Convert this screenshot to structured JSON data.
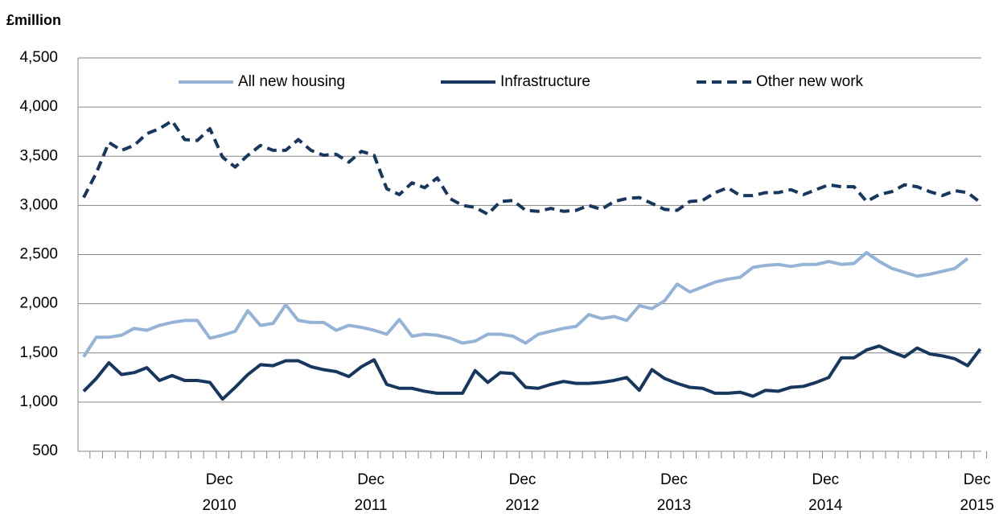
{
  "chart_data": {
    "type": "line",
    "y_label": "£million",
    "categories": [
      null,
      null,
      null,
      null,
      null,
      null,
      null,
      null,
      null,
      null,
      null,
      "Dec 2010",
      null,
      null,
      null,
      null,
      null,
      null,
      null,
      null,
      null,
      null,
      null,
      "Dec 2011",
      null,
      null,
      null,
      null,
      null,
      null,
      null,
      null,
      null,
      null,
      null,
      "Dec 2012",
      null,
      null,
      null,
      null,
      null,
      null,
      null,
      null,
      null,
      null,
      null,
      "Dec 2013",
      null,
      null,
      null,
      null,
      null,
      null,
      null,
      null,
      null,
      null,
      null,
      "Dec 2014",
      null,
      null,
      null,
      null,
      null,
      null,
      null,
      null,
      null,
      null,
      null,
      "Dec 2015"
    ],
    "series": [
      {
        "name": "All new housing",
        "color": "#95b3d7",
        "dashed": false,
        "values": [
          1460,
          1660,
          1660,
          1680,
          1750,
          1730,
          1780,
          1810,
          1830,
          1830,
          1650,
          1680,
          1720,
          1930,
          1780,
          1800,
          1990,
          1830,
          1810,
          1810,
          1730,
          1780,
          1760,
          1730,
          1690,
          1840,
          1670,
          1690,
          1680,
          1650,
          1600,
          1620,
          1690,
          1690,
          1670,
          1600,
          1690,
          1720,
          1750,
          1770,
          1890,
          1850,
          1870,
          1830,
          1980,
          1950,
          2030,
          2200,
          2120,
          2170,
          2220,
          2250,
          2270,
          2370,
          2390,
          2400,
          2380,
          2400,
          2400,
          2430,
          2400,
          2410,
          2520,
          2430,
          2360,
          2320,
          2280,
          2300,
          2330,
          2360,
          2460,
          null
        ]
      },
      {
        "name": "Infrastructure",
        "color": "#17375e",
        "dashed": false,
        "values": [
          1110,
          1240,
          1400,
          1280,
          1300,
          1350,
          1220,
          1270,
          1220,
          1220,
          1200,
          1030,
          1150,
          1280,
          1380,
          1370,
          1420,
          1420,
          1360,
          1330,
          1310,
          1260,
          1360,
          1430,
          1180,
          1140,
          1140,
          1110,
          1090,
          1090,
          1090,
          1320,
          1200,
          1300,
          1290,
          1150,
          1140,
          1180,
          1210,
          1190,
          1190,
          1200,
          1220,
          1250,
          1120,
          1330,
          1240,
          1190,
          1150,
          1140,
          1090,
          1090,
          1100,
          1060,
          1120,
          1110,
          1150,
          1160,
          1200,
          1250,
          1450,
          1450,
          1530,
          1570,
          1510,
          1460,
          1550,
          1490,
          1470,
          1440,
          1370,
          1540
        ]
      },
      {
        "name": "Other new work",
        "color": "#17375e",
        "dashed": true,
        "values": [
          3080,
          3330,
          3640,
          3560,
          3610,
          3730,
          3780,
          3860,
          3670,
          3660,
          3780,
          3490,
          3390,
          3510,
          3610,
          3560,
          3560,
          3670,
          3560,
          3510,
          3520,
          3440,
          3550,
          3510,
          3170,
          3110,
          3230,
          3180,
          3280,
          3070,
          3000,
          2980,
          2910,
          3040,
          3050,
          2950,
          2940,
          2970,
          2940,
          2950,
          3000,
          2960,
          3040,
          3070,
          3080,
          3020,
          2960,
          2950,
          3040,
          3050,
          3130,
          3180,
          3100,
          3100,
          3130,
          3130,
          3160,
          3110,
          3160,
          3210,
          3190,
          3190,
          3040,
          3110,
          3140,
          3210,
          3190,
          3140,
          3100,
          3150,
          3130,
          3030
        ]
      }
    ],
    "ylim": [
      500,
      4500
    ],
    "yticks": [
      500,
      {
        "value": 1000,
        "label": "1,000"
      },
      {
        "value": 1500,
        "label": "1,500"
      },
      {
        "value": 2000,
        "label": "2,000"
      },
      {
        "value": 2500,
        "label": "2,500"
      },
      {
        "value": 3000,
        "label": "3,000"
      },
      {
        "value": 3500,
        "label": "3,500"
      },
      {
        "value": 4000,
        "label": "4,000"
      },
      {
        "value": 4500,
        "label": "4,500"
      }
    ],
    "grid": true,
    "legend": "top"
  }
}
